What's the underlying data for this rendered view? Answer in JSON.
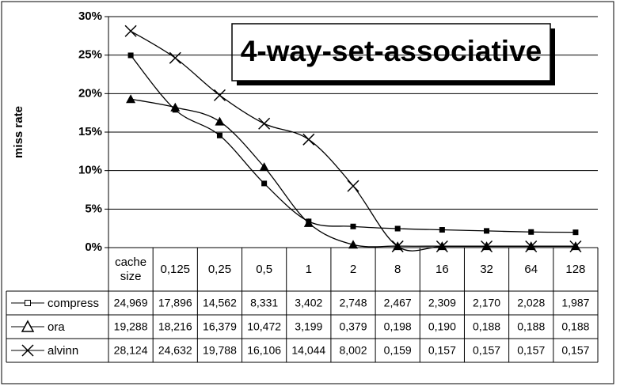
{
  "chart_data": {
    "type": "line",
    "title": "4-way-set-associative",
    "y_label": "miss rate",
    "categories": [
      "cache size",
      "0,125",
      "0,25",
      "0,5",
      "1",
      "2",
      "8",
      "16",
      "32",
      "64",
      "128"
    ],
    "series": [
      {
        "name": "compress",
        "color": "#000000",
        "marker": "square",
        "values": [
          24.969,
          17.896,
          14.562,
          8.331,
          3.402,
          2.748,
          2.467,
          2.309,
          2.17,
          2.028,
          1.987
        ],
        "value_labels": [
          "24,969",
          "17,896",
          "14,562",
          "8,331",
          "3,402",
          "2,748",
          "2,467",
          "2,309",
          "2,170",
          "2,028",
          "1,987"
        ]
      },
      {
        "name": "ora",
        "color": "#000000",
        "marker": "triangle",
        "values": [
          19.288,
          18.216,
          16.379,
          10.472,
          3.199,
          0.379,
          0.198,
          0.19,
          0.188,
          0.188,
          0.188
        ],
        "value_labels": [
          "19,288",
          "18,216",
          "16,379",
          "10,472",
          "3,199",
          "0,379",
          "0,198",
          "0,190",
          "0,188",
          "0,188",
          "0,188"
        ]
      },
      {
        "name": "alvinn",
        "color": "#000000",
        "marker": "x",
        "values": [
          28.124,
          24.632,
          19.788,
          16.106,
          14.044,
          8.002,
          0.159,
          0.157,
          0.157,
          0.157,
          0.157
        ],
        "value_labels": [
          "28,124",
          "24,632",
          "19,788",
          "16,106",
          "14,044",
          "8,002",
          "0,159",
          "0,157",
          "0,157",
          "0,157",
          "0,157"
        ]
      }
    ],
    "ylim": [
      0,
      30
    ],
    "yticks": [
      {
        "value": 0,
        "label": "0%"
      },
      {
        "value": 5,
        "label": "5%"
      },
      {
        "value": 10,
        "label": "10%"
      },
      {
        "value": 15,
        "label": "15%"
      },
      {
        "value": 20,
        "label": "20%"
      },
      {
        "value": 25,
        "label": "25%"
      },
      {
        "value": 30,
        "label": "30%"
      }
    ],
    "grid": true,
    "smooth": true
  }
}
